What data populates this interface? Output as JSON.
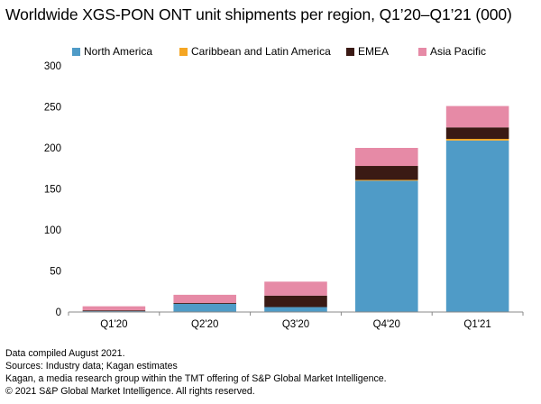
{
  "chart_data": {
    "type": "bar",
    "stacked": true,
    "title": "Worldwide XGS-PON ONT unit shipments per region, Q1’20–Q1’21 (000)",
    "categories": [
      "Q1'20",
      "Q2'20",
      "Q3'20",
      "Q4'20",
      "Q1'21"
    ],
    "series": [
      {
        "name": "North America",
        "color": "#4f9bc7",
        "values": [
          1,
          10,
          6,
          160,
          209
        ]
      },
      {
        "name": "Caribbean and Latin America",
        "color": "#f5a623",
        "values": [
          0,
          0,
          0,
          1,
          2
        ]
      },
      {
        "name": "EMEA",
        "color": "#3a1a14",
        "values": [
          1,
          1,
          14,
          17,
          14
        ]
      },
      {
        "name": "Asia Pacific",
        "color": "#e68aa6",
        "values": [
          5,
          10,
          17,
          22,
          26
        ]
      }
    ],
    "ylim": [
      0,
      300
    ],
    "yticks": [
      0,
      50,
      100,
      150,
      200,
      250,
      300
    ],
    "xlabel": "",
    "ylabel": "",
    "legend_position": "top"
  },
  "notes": [
    "Data compiled August 2021.",
    "Sources: Industry data; Kagan estimates",
    "Kagan, a media research group within the TMT offering of S&P Global Market Intelligence.",
    "© 2021 S&P Global Market Intelligence. All rights reserved."
  ]
}
